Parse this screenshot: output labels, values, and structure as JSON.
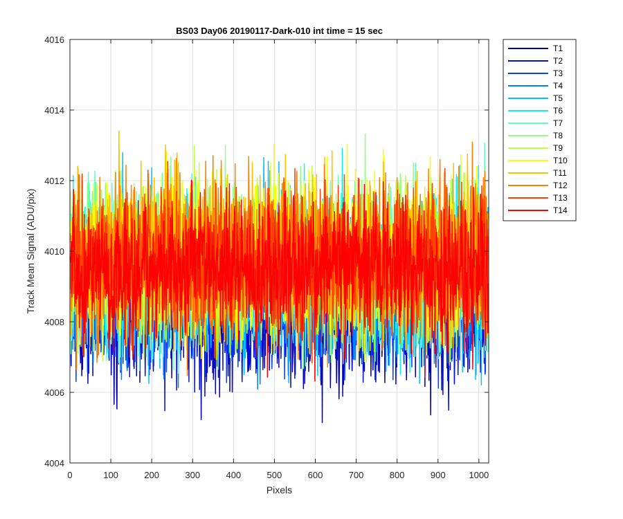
{
  "chart_data": {
    "type": "line",
    "title": "BS03 Day06 20190117-Dark-010 int time = 15 sec",
    "xlabel": "Pixels",
    "ylabel": "Track Mean Signal (ADU/pix)",
    "xlim": [
      0,
      1024
    ],
    "ylim": [
      4004,
      4016
    ],
    "xticks": [
      0,
      100,
      200,
      300,
      400,
      500,
      600,
      700,
      800,
      900,
      1000
    ],
    "yticks": [
      4004,
      4006,
      4008,
      4010,
      4012,
      4014,
      4016
    ],
    "x_range": [
      1,
      1024
    ],
    "grid": true,
    "legend_position": "outside-right",
    "series": [
      {
        "name": "T1",
        "color": "#0000b4",
        "mean": 4008.3,
        "spread": 1.0,
        "min": 4004.8,
        "max": 4010.8
      },
      {
        "name": "T2",
        "color": "#0010d8",
        "mean": 4008.5,
        "spread": 1.0,
        "min": 4005.2,
        "max": 4011.0
      },
      {
        "name": "T3",
        "color": "#0040ff",
        "mean": 4008.8,
        "spread": 1.0,
        "min": 4005.5,
        "max": 4011.5
      },
      {
        "name": "T4",
        "color": "#0080ff",
        "mean": 4009.0,
        "spread": 1.0,
        "min": 4006.0,
        "max": 4012.0
      },
      {
        "name": "T5",
        "color": "#00c0ff",
        "mean": 4009.3,
        "spread": 1.1,
        "min": 4006.2,
        "max": 4013.3
      },
      {
        "name": "T6",
        "color": "#10f0f0",
        "mean": 4009.6,
        "spread": 1.1,
        "min": 4006.4,
        "max": 4014.1
      },
      {
        "name": "T7",
        "color": "#60ffc0",
        "mean": 4009.6,
        "spread": 1.1,
        "min": 4006.5,
        "max": 4013.6
      },
      {
        "name": "T8",
        "color": "#90ff80",
        "mean": 4009.7,
        "spread": 1.1,
        "min": 4006.5,
        "max": 4014.1
      },
      {
        "name": "T9",
        "color": "#c0ff40",
        "mean": 4009.8,
        "spread": 1.1,
        "min": 4006.6,
        "max": 4013.4
      },
      {
        "name": "T10",
        "color": "#ffff00",
        "mean": 4009.8,
        "spread": 1.1,
        "min": 4006.8,
        "max": 4014.1
      },
      {
        "name": "T11",
        "color": "#ffc000",
        "mean": 4009.8,
        "spread": 1.1,
        "min": 4006.6,
        "max": 4013.7
      },
      {
        "name": "T12",
        "color": "#ff8000",
        "mean": 4009.8,
        "spread": 1.1,
        "min": 4006.4,
        "max": 4013.9
      },
      {
        "name": "T13",
        "color": "#ff4000",
        "mean": 4009.7,
        "spread": 1.0,
        "min": 4006.2,
        "max": 4013.4
      },
      {
        "name": "T14",
        "color": "#ff0000",
        "mean": 4009.5,
        "spread": 1.0,
        "min": 4005.1,
        "max": 4012.6
      }
    ]
  }
}
